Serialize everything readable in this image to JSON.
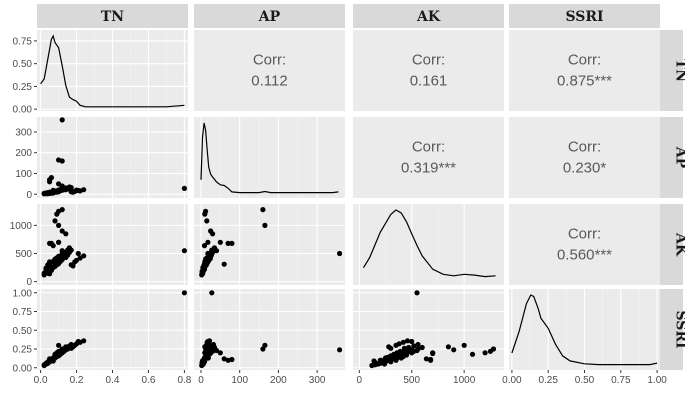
{
  "chart_data": {
    "type": "scatter",
    "variables": [
      "TN",
      "AP",
      "AK",
      "SSRI"
    ],
    "corr_label": "Corr:",
    "correlations": [
      {
        "row": "TN",
        "col": "AP",
        "value": "0.112"
      },
      {
        "row": "TN",
        "col": "AK",
        "value": "0.161"
      },
      {
        "row": "TN",
        "col": "SSRI",
        "value": "0.875***"
      },
      {
        "row": "AP",
        "col": "AK",
        "value": "0.319***"
      },
      {
        "row": "AP",
        "col": "SSRI",
        "value": "0.230*"
      },
      {
        "row": "AK",
        "col": "SSRI",
        "value": "0.560***"
      }
    ],
    "axes": {
      "TN": {
        "range": [
          -0.02,
          0.82
        ],
        "ticks": [
          0,
          0.2,
          0.4,
          0.6,
          0.8
        ],
        "tick_labels": [
          "0.0",
          "0.2",
          "0.4",
          "0.6",
          "0.8"
        ]
      },
      "AP": {
        "range": [
          -18,
          372
        ],
        "ticks": [
          0,
          100,
          200,
          300
        ],
        "tick_labels": [
          "0",
          "100",
          "200",
          "300"
        ]
      },
      "AK": {
        "range": [
          -60,
          1380
        ],
        "ticks": [
          0,
          500,
          1000
        ],
        "tick_labels": [
          "0",
          "500",
          "1000"
        ]
      },
      "SSRI": {
        "range": [
          -0.02,
          1.02
        ],
        "ticks": [
          0,
          0.25,
          0.5,
          0.75,
          1.0
        ],
        "tick_labels": [
          "0.00",
          "0.25",
          "0.50",
          "0.75",
          "1.00"
        ]
      }
    },
    "row_axes": {
      "TN": {
        "range": [
          -0.02,
          0.87
        ],
        "ticks": [
          0,
          0.25,
          0.5,
          0.75
        ],
        "tick_labels": [
          "0.00",
          "0.25",
          "0.50",
          "0.75"
        ]
      },
      "AP": {
        "range": [
          -18,
          372
        ],
        "ticks": [
          0,
          100,
          200,
          300
        ],
        "tick_labels": [
          "0",
          "100",
          "200",
          "300"
        ]
      },
      "AK": {
        "range": [
          -60,
          1380
        ],
        "ticks": [
          0,
          500,
          1000
        ],
        "tick_labels": [
          "0",
          "500",
          "1000"
        ]
      },
      "SSRI": {
        "range": [
          -0.03,
          1.05
        ],
        "ticks": [
          0,
          0.25,
          0.5,
          0.75,
          1.0
        ],
        "tick_labels": [
          "0.00",
          "0.25",
          "0.50",
          "0.75",
          "1.00"
        ]
      }
    },
    "densities": {
      "TN": {
        "x": [
          0.0,
          0.02,
          0.04,
          0.06,
          0.07,
          0.08,
          0.1,
          0.12,
          0.14,
          0.16,
          0.18,
          0.2,
          0.22,
          0.25,
          0.35,
          0.5,
          0.7,
          0.8
        ],
        "y": [
          0.28,
          0.34,
          0.58,
          0.82,
          0.86,
          0.78,
          0.72,
          0.5,
          0.26,
          0.12,
          0.09,
          0.07,
          0.02,
          0.003,
          0.002,
          0.002,
          0.003,
          0.02
        ]
      },
      "AP": {
        "x": [
          0,
          4,
          8,
          12,
          16,
          20,
          25,
          30,
          40,
          50,
          60,
          70,
          80,
          100,
          150,
          165,
          180,
          250,
          340,
          355
        ],
        "y": [
          0.2,
          0.8,
          1.0,
          0.9,
          0.62,
          0.38,
          0.28,
          0.24,
          0.17,
          0.13,
          0.12,
          0.08,
          0.03,
          0.02,
          0.02,
          0.035,
          0.02,
          0.02,
          0.02,
          0.03
        ]
      },
      "AK": {
        "x": [
          40,
          100,
          200,
          300,
          350,
          400,
          450,
          500,
          550,
          600,
          700,
          800,
          900,
          1000,
          1100,
          1200,
          1300
        ],
        "y": [
          0.18,
          0.32,
          0.66,
          0.9,
          0.96,
          0.92,
          0.8,
          0.64,
          0.48,
          0.34,
          0.16,
          0.09,
          0.07,
          0.09,
          0.08,
          0.06,
          0.07
        ]
      },
      "SSRI": {
        "x": [
          0.0,
          0.05,
          0.1,
          0.13,
          0.15,
          0.18,
          0.2,
          0.25,
          0.3,
          0.35,
          0.4,
          0.5,
          0.6,
          0.8,
          0.95,
          1.0
        ],
        "y": [
          0.18,
          0.48,
          0.86,
          0.98,
          0.96,
          0.8,
          0.66,
          0.52,
          0.3,
          0.14,
          0.07,
          0.03,
          0.02,
          0.02,
          0.02,
          0.04
        ]
      }
    },
    "points": {
      "TN": [
        0.06,
        0.03,
        0.04,
        0.05,
        0.02,
        0.08,
        0.09,
        0.1,
        0.11,
        0.07,
        0.05,
        0.12,
        0.13,
        0.14,
        0.15,
        0.16,
        0.12,
        0.1,
        0.08,
        0.09,
        0.06,
        0.04,
        0.07,
        0.11,
        0.13,
        0.17,
        0.18,
        0.19,
        0.2,
        0.22,
        0.24,
        0.05,
        0.06,
        0.08,
        0.09,
        0.1,
        0.12,
        0.14,
        0.1,
        0.07,
        0.03,
        0.02,
        0.05,
        0.06,
        0.08,
        0.11,
        0.13,
        0.15,
        0.16,
        0.09,
        0.1,
        0.11,
        0.12,
        0.14,
        0.07,
        0.08,
        0.04,
        0.06,
        0.09,
        0.17,
        0.21,
        0.05,
        0.03,
        0.1,
        0.12,
        0.12,
        0.1,
        0.8
      ],
      "AP": [
        5,
        3,
        8,
        10,
        4,
        12,
        15,
        20,
        18,
        6,
        9,
        25,
        30,
        22,
        28,
        35,
        40,
        14,
        11,
        16,
        7,
        5,
        19,
        24,
        27,
        12,
        10,
        14,
        20,
        16,
        22,
        60,
        80,
        15,
        10,
        12,
        25,
        30,
        18,
        9,
        6,
        2,
        4,
        8,
        12,
        20,
        22,
        26,
        30,
        14,
        16,
        18,
        20,
        24,
        9,
        11,
        3,
        7,
        15,
        32,
        18,
        70,
        5,
        50,
        160,
        358,
        165,
        28
      ],
      "AK": [
        250,
        180,
        300,
        350,
        150,
        400,
        420,
        450,
        380,
        260,
        220,
        500,
        520,
        480,
        560,
        600,
        550,
        320,
        280,
        340,
        200,
        160,
        360,
        410,
        470,
        300,
        280,
        350,
        380,
        420,
        460,
        310,
        680,
        1080,
        1200,
        1250,
        900,
        850,
        700,
        640,
        240,
        120,
        140,
        260,
        330,
        390,
        430,
        470,
        520,
        300,
        330,
        360,
        390,
        430,
        250,
        270,
        150,
        210,
        350,
        560,
        500,
        680,
        200,
        700,
        1280,
        500,
        1000,
        550
      ],
      "SSRI": [
        0.1,
        0.05,
        0.08,
        0.1,
        0.04,
        0.13,
        0.15,
        0.17,
        0.18,
        0.09,
        0.08,
        0.2,
        0.22,
        0.24,
        0.25,
        0.27,
        0.23,
        0.16,
        0.14,
        0.15,
        0.1,
        0.06,
        0.13,
        0.19,
        0.22,
        0.26,
        0.28,
        0.3,
        0.32,
        0.34,
        0.36,
        0.12,
        0.11,
        0.18,
        0.2,
        0.22,
        0.24,
        0.28,
        0.19,
        0.12,
        0.05,
        0.03,
        0.09,
        0.11,
        0.15,
        0.2,
        0.23,
        0.27,
        0.29,
        0.16,
        0.18,
        0.2,
        0.22,
        0.26,
        0.13,
        0.14,
        0.07,
        0.1,
        0.17,
        0.31,
        0.35,
        0.1,
        0.06,
        0.2,
        0.25,
        0.24,
        0.3,
        1.0
      ]
    }
  }
}
